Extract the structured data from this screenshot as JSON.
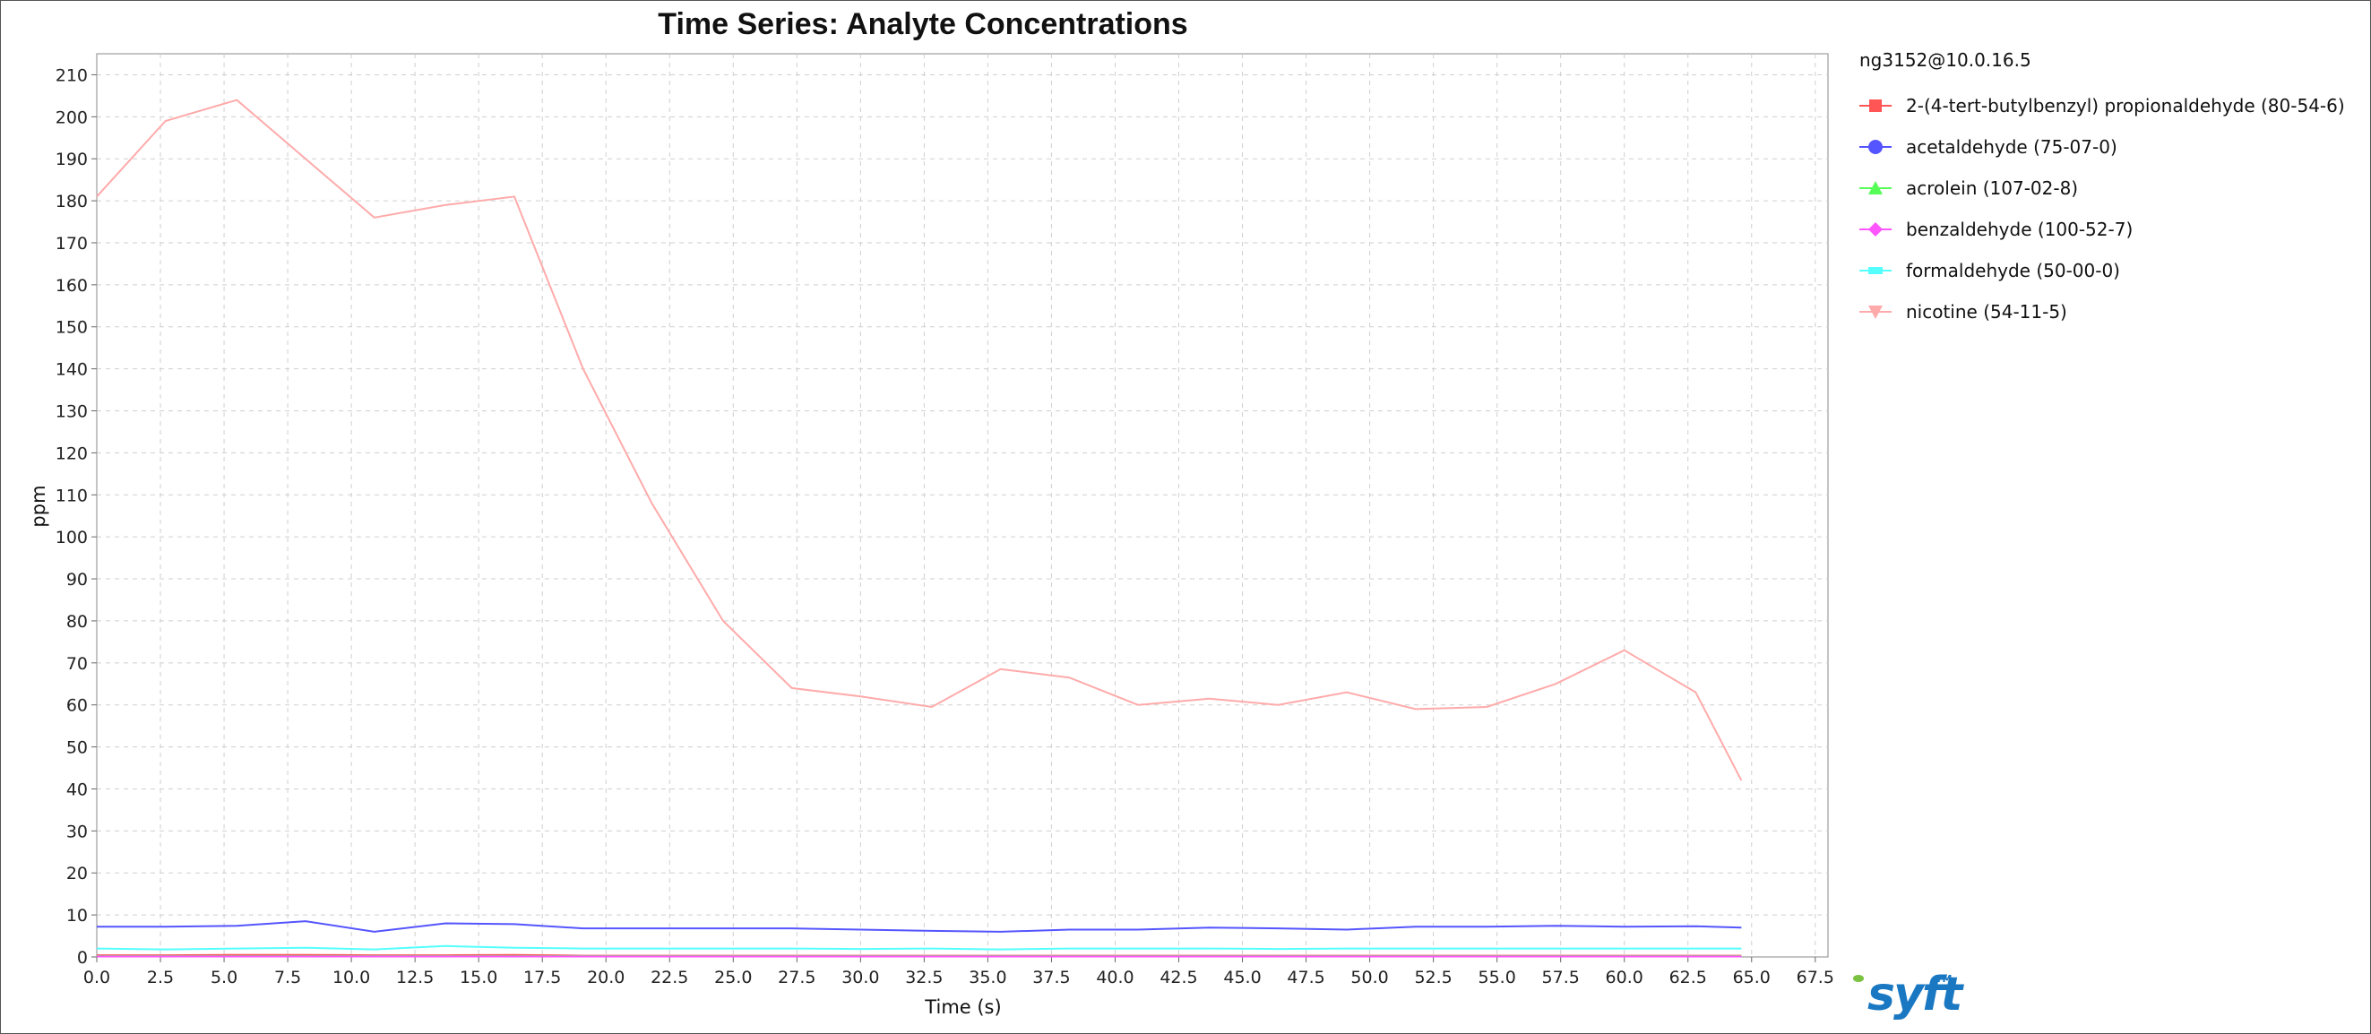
{
  "chart_data": {
    "type": "line",
    "title": "Time Series: Analyte Concentrations",
    "xlabel": "Time (s)",
    "ylabel": "ppm",
    "xlim": [
      0,
      68
    ],
    "ylim": [
      0,
      215
    ],
    "x_ticks": [
      0.0,
      2.5,
      5.0,
      7.5,
      10.0,
      12.5,
      15.0,
      17.5,
      20.0,
      22.5,
      25.0,
      27.5,
      30.0,
      32.5,
      35.0,
      37.5,
      40.0,
      42.5,
      45.0,
      47.5,
      50.0,
      52.5,
      55.0,
      57.5,
      60.0,
      62.5,
      65.0,
      67.5
    ],
    "y_ticks": [
      0,
      10,
      20,
      30,
      40,
      50,
      60,
      70,
      80,
      90,
      100,
      110,
      120,
      130,
      140,
      150,
      160,
      170,
      180,
      190,
      200,
      210
    ],
    "grid": true,
    "legend_placement": "right",
    "legend_title": "ng3152@10.0.16.5",
    "series": [
      {
        "name": "2-(4-tert-butylbenzyl) propionaldehyde (80-54-6)",
        "color": "#ff5555",
        "marker": "square",
        "x": [
          0.0,
          2.7,
          5.5,
          8.2,
          10.9,
          13.7,
          16.4,
          19.1,
          21.8,
          24.6,
          27.3,
          30.0,
          32.8,
          35.5,
          38.2,
          40.9,
          43.7,
          46.4,
          49.1,
          51.8,
          54.6,
          57.3,
          60.0,
          62.8,
          64.6
        ],
        "y": [
          0.4,
          0.4,
          0.5,
          0.5,
          0.4,
          0.4,
          0.5,
          0.3,
          0.3,
          0.3,
          0.3,
          0.3,
          0.3,
          0.3,
          0.3,
          0.3,
          0.3,
          0.3,
          0.3,
          0.3,
          0.3,
          0.3,
          0.3,
          0.3,
          0.3
        ]
      },
      {
        "name": "acetaldehyde (75-07-0)",
        "color": "#5555ff",
        "marker": "circle",
        "x": [
          0.0,
          2.7,
          5.5,
          8.2,
          10.9,
          13.7,
          16.4,
          19.1,
          21.8,
          24.6,
          27.3,
          30.0,
          32.8,
          35.5,
          38.2,
          40.9,
          43.7,
          46.4,
          49.1,
          51.8,
          54.6,
          57.3,
          60.0,
          62.8,
          64.6
        ],
        "y": [
          7.2,
          7.2,
          7.4,
          8.5,
          6.0,
          8.0,
          7.8,
          6.8,
          6.8,
          6.8,
          6.8,
          6.5,
          6.2,
          6.0,
          6.5,
          6.5,
          7.0,
          6.8,
          6.5,
          7.2,
          7.2,
          7.4,
          7.2,
          7.3,
          7.0
        ]
      },
      {
        "name": "acrolein (107-02-8)",
        "color": "#55ff55",
        "marker": "triangle-up",
        "x": [
          0.0,
          2.7,
          5.5,
          8.2,
          10.9,
          13.7,
          16.4,
          19.1,
          21.8,
          24.6,
          27.3,
          30.0,
          32.8,
          35.5,
          38.2,
          40.9,
          43.7,
          46.4,
          49.1,
          51.8,
          54.6,
          57.3,
          60.0,
          62.8,
          64.6
        ],
        "y": [
          0.2,
          0.2,
          0.2,
          0.2,
          0.2,
          0.2,
          0.2,
          0.2,
          0.2,
          0.2,
          0.2,
          0.2,
          0.2,
          0.2,
          0.2,
          0.2,
          0.2,
          0.2,
          0.2,
          0.2,
          0.2,
          0.2,
          0.2,
          0.2,
          0.2
        ]
      },
      {
        "name": "benzaldehyde (100-52-7)",
        "color": "#ff55ff",
        "marker": "diamond",
        "x": [
          0.0,
          2.7,
          5.5,
          8.2,
          10.9,
          13.7,
          16.4,
          19.1,
          21.8,
          24.6,
          27.3,
          30.0,
          32.8,
          35.5,
          38.2,
          40.9,
          43.7,
          46.4,
          49.1,
          51.8,
          54.6,
          57.3,
          60.0,
          62.8,
          64.6
        ],
        "y": [
          0.1,
          0.1,
          0.1,
          0.1,
          0.1,
          0.1,
          0.1,
          0.1,
          0.1,
          0.1,
          0.1,
          0.1,
          0.1,
          0.1,
          0.1,
          0.1,
          0.1,
          0.1,
          0.1,
          0.1,
          0.1,
          0.1,
          0.1,
          0.1,
          0.1
        ]
      },
      {
        "name": "formaldehyde (50-00-0)",
        "color": "#55ffff",
        "marker": "rectangle",
        "x": [
          0.0,
          2.7,
          5.5,
          8.2,
          10.9,
          13.7,
          16.4,
          19.1,
          21.8,
          24.6,
          27.3,
          30.0,
          32.8,
          35.5,
          38.2,
          40.9,
          43.7,
          46.4,
          49.1,
          51.8,
          54.6,
          57.3,
          60.0,
          62.8,
          64.6
        ],
        "y": [
          2.0,
          1.8,
          2.0,
          2.2,
          1.8,
          2.6,
          2.2,
          2.0,
          2.0,
          2.0,
          2.0,
          1.9,
          2.0,
          1.8,
          2.0,
          2.0,
          2.0,
          1.9,
          2.0,
          2.0,
          2.0,
          2.0,
          2.0,
          2.0,
          2.0
        ]
      },
      {
        "name": "nicotine (54-11-5)",
        "color": "#ffaaaa",
        "marker": "triangle-down",
        "x": [
          0.0,
          2.7,
          5.5,
          8.2,
          10.9,
          13.7,
          16.4,
          19.1,
          21.8,
          24.6,
          27.3,
          30.0,
          32.8,
          35.5,
          38.2,
          40.9,
          43.7,
          46.4,
          49.1,
          51.8,
          54.6,
          57.3,
          60.0,
          62.8,
          64.6
        ],
        "y": [
          181,
          199,
          204,
          190,
          176,
          179,
          181,
          140,
          108,
          80,
          64,
          62,
          59.5,
          68.5,
          66.5,
          60,
          61.5,
          60,
          63,
          59,
          59.5,
          65,
          73,
          63,
          42
        ]
      }
    ]
  },
  "logo": {
    "text": "syft",
    "tm": "TM"
  }
}
